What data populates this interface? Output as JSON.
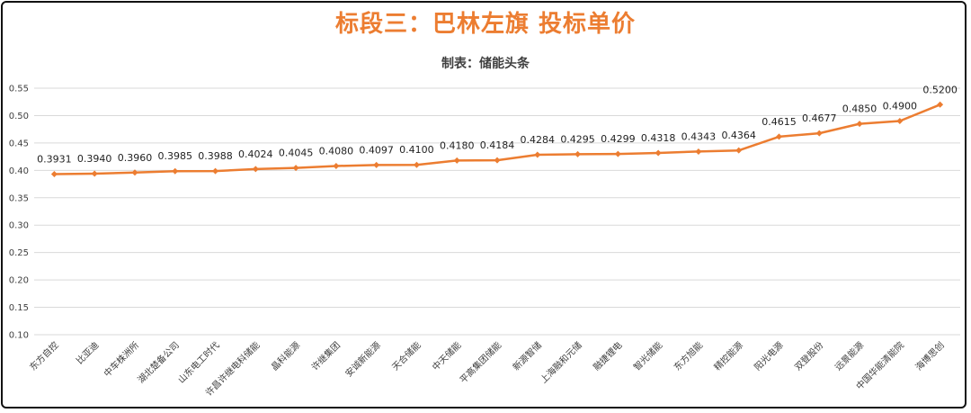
{
  "chart_data": {
    "type": "line",
    "title": "标段三：巴林左旗 投标单价",
    "subtitle": "制表：储能头条",
    "color": "#ec7d31",
    "ylim": [
      0.1,
      0.55
    ],
    "yticks": [
      "0.10",
      "0.15",
      "0.20",
      "0.25",
      "0.30",
      "0.35",
      "0.40",
      "0.45",
      "0.50",
      "0.55"
    ],
    "grid": true,
    "categories": [
      "东方自控",
      "比亚迪",
      "中车株洲所",
      "湖北楚备公司",
      "山东电工时代",
      "许昌许继电科储能",
      "晶科能源",
      "许继集团",
      "安诚新能源",
      "天合储能",
      "中天储能",
      "平高集团储能",
      "新源智储",
      "上海融和元储",
      "融捷锂电",
      "智光储能",
      "东方旭能",
      "精控能源",
      "阳光电源",
      "双登股份",
      "远景能源",
      "中国华能清能院",
      "海博思创"
    ],
    "values": [
      0.3931,
      0.394,
      0.396,
      0.3985,
      0.3988,
      0.4024,
      0.4045,
      0.408,
      0.4097,
      0.41,
      0.418,
      0.4184,
      0.4284,
      0.4295,
      0.4299,
      0.4318,
      0.4343,
      0.4364,
      0.4615,
      0.4677,
      0.485,
      0.49,
      0.52
    ],
    "labels": [
      "0.3931",
      "0.3940",
      "0.3960",
      "0.3985",
      "0.3988",
      "0.4024",
      "0.4045",
      "0.4080",
      "0.4097",
      "0.4100",
      "0.4180",
      "0.4184",
      "0.4284",
      "0.4295",
      "0.4299",
      "0.4318",
      "0.4343",
      "0.4364",
      "0.4615",
      "0.4677",
      "0.4850",
      "0.4900",
      "0.5200"
    ]
  }
}
